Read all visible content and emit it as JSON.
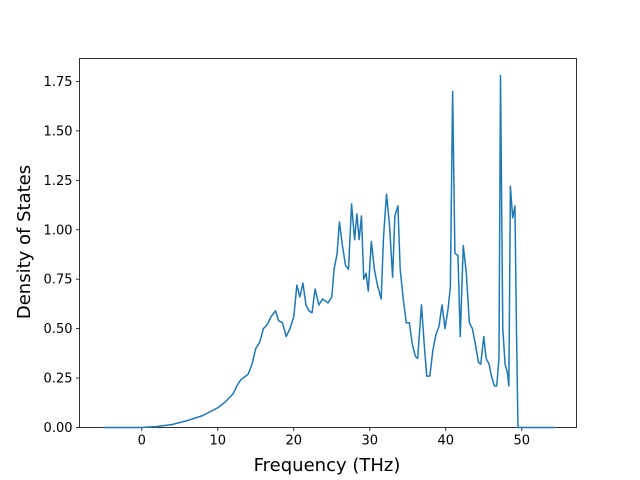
{
  "chart_data": {
    "type": "line",
    "x_label": "Frequency (THz)",
    "y_label": "Density of States",
    "color": "#1f77b4",
    "x": [
      -5,
      0,
      2,
      4,
      6,
      8,
      9,
      10,
      11,
      12,
      12.5,
      13,
      14,
      14.5,
      15,
      15.5,
      16,
      16.5,
      17,
      17.6,
      18,
      18.5,
      19,
      19.5,
      20,
      20.4,
      20.8,
      21.2,
      21.6,
      22,
      22.4,
      22.8,
      23.3,
      23.8,
      24.5,
      25,
      25.3,
      25.7,
      26,
      26.4,
      26.8,
      27.2,
      27.6,
      28,
      28.3,
      28.6,
      28.9,
      29.2,
      29.5,
      29.8,
      30.2,
      30.6,
      31,
      31.5,
      31.8,
      32.2,
      32.6,
      33,
      33.3,
      33.7,
      34,
      34.4,
      34.8,
      35.2,
      35.6,
      36,
      36.3,
      36.8,
      37.2,
      37.5,
      37.9,
      38.3,
      38.7,
      39.1,
      39.5,
      39.9,
      40.3,
      40.6,
      40.9,
      41.2,
      41.6,
      41.9,
      42.3,
      42.7,
      43.1,
      43.5,
      43.9,
      44.3,
      44.6,
      45,
      45.3,
      45.7,
      46,
      46.4,
      46.7,
      47,
      47.2,
      47.5,
      47.8,
      48.1,
      48.3,
      48.5,
      48.8,
      49.1,
      49.3,
      49.5,
      50,
      54.3
    ],
    "values": [
      0,
      0,
      0.005,
      0.015,
      0.035,
      0.06,
      0.08,
      0.1,
      0.13,
      0.17,
      0.21,
      0.24,
      0.27,
      0.32,
      0.4,
      0.43,
      0.5,
      0.52,
      0.56,
      0.59,
      0.54,
      0.53,
      0.46,
      0.5,
      0.56,
      0.72,
      0.66,
      0.73,
      0.62,
      0.59,
      0.58,
      0.7,
      0.62,
      0.65,
      0.63,
      0.66,
      0.8,
      0.88,
      1.04,
      0.92,
      0.82,
      0.8,
      1.13,
      0.95,
      1.08,
      0.95,
      1.07,
      0.75,
      0.78,
      0.69,
      0.94,
      0.8,
      0.72,
      0.65,
      0.96,
      1.18,
      1.02,
      0.76,
      1.07,
      1.12,
      0.8,
      0.65,
      0.53,
      0.53,
      0.42,
      0.36,
      0.35,
      0.62,
      0.4,
      0.26,
      0.26,
      0.39,
      0.47,
      0.51,
      0.62,
      0.5,
      0.6,
      0.71,
      1.7,
      0.88,
      0.87,
      0.46,
      0.92,
      0.78,
      0.53,
      0.5,
      0.42,
      0.33,
      0.32,
      0.46,
      0.35,
      0.32,
      0.26,
      0.21,
      0.21,
      0.35,
      1.78,
      0.5,
      0.32,
      0.28,
      0.21,
      1.22,
      1.06,
      1.12,
      0.5,
      0,
      0,
      0
    ],
    "xlim": [
      -8.2,
      57.2
    ],
    "xticks": [
      0,
      10,
      20,
      30,
      40,
      50
    ],
    "ylim": [
      0,
      1.866
    ],
    "yticks": [
      {
        "value": 0,
        "label": "0.00"
      },
      {
        "value": 0.25,
        "label": "0.25"
      },
      {
        "value": 0.5,
        "label": "0.50"
      },
      {
        "value": 0.75,
        "label": "0.75"
      },
      {
        "value": 1,
        "label": "1.00"
      },
      {
        "value": 1.25,
        "label": "1.25"
      },
      {
        "value": 1.5,
        "label": "1.50"
      },
      {
        "value": 1.75,
        "label": "1.75"
      }
    ]
  }
}
